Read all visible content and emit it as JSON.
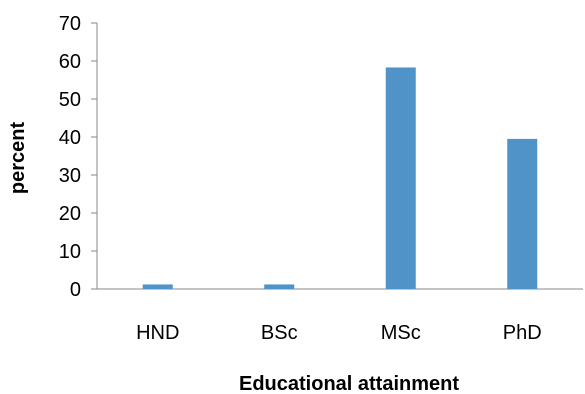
{
  "chart_data": {
    "type": "bar",
    "title": "",
    "xlabel": "Educational attainment",
    "ylabel": "percent",
    "categories": [
      "HND",
      "BSc",
      "MSc",
      "PhD"
    ],
    "series": [
      {
        "values": [
          1.2,
          1.2,
          58.3,
          39.5
        ]
      }
    ],
    "ylim": [
      0,
      70
    ],
    "yticks": [
      0,
      10,
      20,
      30,
      40,
      50,
      60,
      70
    ],
    "grid": false,
    "legend": "none",
    "bar_color": "#4f93c9",
    "axis_color": "#888888"
  }
}
